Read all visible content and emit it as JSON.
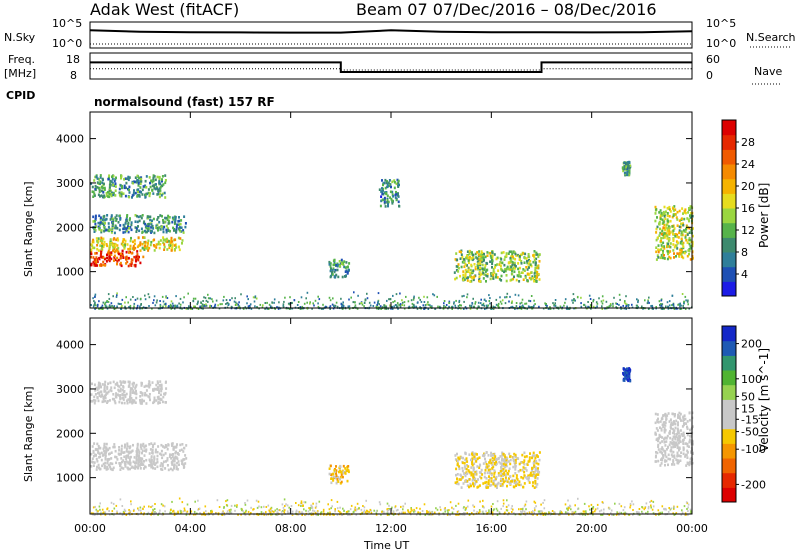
{
  "header": {
    "title_left": "Adak West (fitACF)",
    "title_right": "Beam 07  07/Dec/2016 – 08/Dec/2016"
  },
  "labels": {
    "nsky": "N.Sky",
    "nsearch": "N.Search",
    "freq": "Freq.",
    "mhz": "[MHz]",
    "nave": "Nave",
    "cpid": "CPID",
    "cpid_value": "normalsound (fast) 157 RF",
    "left_10_5": "10^5",
    "left_10_0": "10^0",
    "right_10_5": "10^5",
    "right_10_0": "10^0",
    "freq_hi": "18",
    "freq_lo": "8",
    "nave_hi": "60",
    "nave_lo": "0"
  },
  "chart_data": [
    {
      "type": "line",
      "title": "N.Sky / N.Search",
      "x": [
        "00:00",
        "02:00",
        "04:00",
        "06:00",
        "08:00",
        "10:00",
        "12:00",
        "14:00",
        "16:00",
        "18:00",
        "20:00",
        "22:00",
        "00:00"
      ],
      "series": [
        {
          "name": "N.Sky",
          "values": [
            3000,
            1500,
            1200,
            1100,
            1000,
            1000,
            3000,
            1500,
            1200,
            1200,
            1100,
            1200,
            2000
          ]
        }
      ],
      "ylim": [
        1,
        100000
      ],
      "log_y": true
    },
    {
      "type": "line",
      "title": "Freq. [MHz] / Nave",
      "x": [
        "00:00",
        "10:00",
        "10:00",
        "18:00",
        "18:00",
        "24:00"
      ],
      "series": [
        {
          "name": "Freq.",
          "values": [
            14.5,
            14.5,
            10.5,
            10.5,
            14.5,
            14.5
          ]
        },
        {
          "name": "Nave",
          "values": [
            23,
            23,
            20,
            20,
            23,
            23
          ]
        }
      ],
      "ylim": [
        8,
        18
      ]
    },
    {
      "type": "heatmap",
      "title": "Power [dB]",
      "xlabel": "",
      "ylabel": "Slant Range [km]",
      "x_ticks": [
        "00:00",
        "04:00",
        "08:00",
        "12:00",
        "16:00",
        "20:00",
        "00:00"
      ],
      "x_range_hours": [
        0,
        24
      ],
      "y_ticks": [
        1000,
        2000,
        3000,
        4000
      ],
      "ylim": [
        180,
        4600
      ],
      "colorbar": {
        "label": "Power [dB]",
        "ticks": [
          4,
          8,
          12,
          16,
          20,
          24,
          28
        ],
        "range": [
          0,
          32
        ],
        "colors": [
          "#1c1ce6",
          "#1e50b4",
          "#2f7f9a",
          "#3d8a6e",
          "#56b34a",
          "#9ad640",
          "#e6dc1e",
          "#f5b300",
          "#f58a00",
          "#f05a00",
          "#e62800",
          "#dc0000"
        ]
      },
      "regions": [
        {
          "t0": 0.0,
          "t1": 2.1,
          "r0": 1150,
          "r1": 1500,
          "level": 28
        },
        {
          "t0": 0.0,
          "t1": 3.7,
          "r0": 1500,
          "r1": 1800,
          "level": 18
        },
        {
          "t0": 0.0,
          "t1": 3.8,
          "r0": 1900,
          "r1": 2300,
          "level": 9
        },
        {
          "t0": 0.0,
          "t1": 3.0,
          "r0": 2700,
          "r1": 3200,
          "level": 10
        },
        {
          "t0": 9.5,
          "t1": 10.3,
          "r0": 900,
          "r1": 1300,
          "level": 10
        },
        {
          "t0": 11.5,
          "t1": 12.3,
          "r0": 2500,
          "r1": 3100,
          "level": 8
        },
        {
          "t0": 14.5,
          "t1": 17.9,
          "r0": 800,
          "r1": 1500,
          "level": 14
        },
        {
          "t0": 21.2,
          "t1": 21.5,
          "r0": 3200,
          "r1": 3500,
          "level": 10
        },
        {
          "t0": 22.5,
          "t1": 24.0,
          "r0": 1300,
          "r1": 2500,
          "level": 16
        }
      ]
    },
    {
      "type": "heatmap",
      "title": "Velocity [m s^-1]",
      "xlabel": "Time UT",
      "ylabel": "Slant Range [km]",
      "x_ticks": [
        "00:00",
        "04:00",
        "08:00",
        "12:00",
        "16:00",
        "20:00",
        "00:00"
      ],
      "x_range_hours": [
        0,
        24
      ],
      "y_ticks": [
        1000,
        2000,
        3000,
        4000
      ],
      "ylim": [
        180,
        4600
      ],
      "colorbar": {
        "label": "Velocity [m s^-1]",
        "ticks": [
          -200,
          -100,
          -50,
          -15,
          15,
          50,
          100,
          200
        ],
        "range": [
          -250,
          250
        ],
        "colors": [
          "#dc0000",
          "#e62800",
          "#f06400",
          "#f59600",
          "#f5c800",
          "#c8c8c8",
          "#c8c8c8",
          "#96d250",
          "#50b432",
          "#32966e",
          "#1e5ab4",
          "#1428c8"
        ]
      },
      "regions": [
        {
          "t0": 0.0,
          "t1": 3.8,
          "r0": 1200,
          "r1": 1800,
          "level": 0
        },
        {
          "t0": 0.0,
          "t1": 3.0,
          "r0": 2700,
          "r1": 3200,
          "level": 0
        },
        {
          "t0": 9.5,
          "t1": 10.3,
          "r0": 900,
          "r1": 1300,
          "level": -60
        },
        {
          "t0": 14.5,
          "t1": 17.9,
          "r0": 800,
          "r1": 1600,
          "level": -40
        },
        {
          "t0": 21.2,
          "t1": 21.5,
          "r0": 3200,
          "r1": 3500,
          "level": 200
        },
        {
          "t0": 22.5,
          "t1": 24.0,
          "r0": 1300,
          "r1": 2500,
          "level": 0
        }
      ]
    }
  ]
}
